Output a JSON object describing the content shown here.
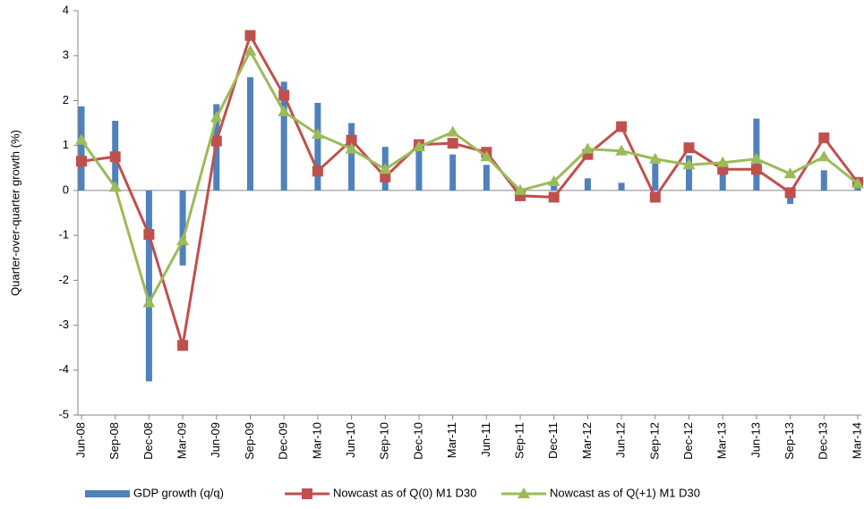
{
  "chart_data": {
    "type": "combo",
    "y_label": "Quarter-over-quarter growth (%)",
    "categories": [
      "Jun-08",
      "Sep-08",
      "Dec-08",
      "Mar-09",
      "Jun-09",
      "Sep-09",
      "Dec-09",
      "Mar-10",
      "Jun-10",
      "Sep-10",
      "Dec-10",
      "Mar-11",
      "Jun-11",
      "Sep-11",
      "Dec-11",
      "Mar-12",
      "Jun-12",
      "Sep-12",
      "Dec-12",
      "Mar-13",
      "Jun-13",
      "Sep-13",
      "Dec-13",
      "Mar-14"
    ],
    "series": [
      {
        "name": "GDP growth (q/q)",
        "type": "bar",
        "color": "#4f81bd",
        "values": [
          1.87,
          1.55,
          -4.25,
          -1.67,
          1.92,
          2.52,
          2.42,
          1.95,
          1.5,
          0.97,
          1.0,
          0.8,
          0.57,
          0.02,
          0.1,
          0.27,
          0.17,
          0.6,
          0.78,
          0.5,
          1.6,
          -0.3,
          0.45,
          0.2
        ]
      },
      {
        "name": "Nowcast as of Q(0) M1 D30",
        "type": "line",
        "marker": "square",
        "color": "#c0504d",
        "values": [
          0.65,
          0.75,
          -0.98,
          -3.45,
          1.1,
          3.45,
          2.12,
          0.43,
          1.12,
          0.3,
          1.02,
          1.05,
          0.85,
          -0.12,
          -0.15,
          0.8,
          1.42,
          -0.15,
          0.95,
          0.47,
          0.47,
          -0.05,
          1.17,
          0.18
        ]
      },
      {
        "name": "Nowcast as of Q(+1) M1 D30",
        "type": "line",
        "marker": "triangle",
        "color": "#9bbb59",
        "values": [
          1.12,
          0.07,
          -2.5,
          -1.12,
          1.62,
          3.1,
          1.75,
          1.25,
          0.92,
          0.47,
          0.97,
          1.3,
          0.75,
          0.0,
          0.2,
          0.92,
          0.88,
          0.7,
          0.57,
          0.62,
          0.7,
          0.37,
          0.75,
          0.15
        ]
      }
    ],
    "ylim": [
      -5,
      4
    ],
    "yticks": [
      -5,
      -4,
      -3,
      -2,
      -1,
      0,
      1,
      2,
      3,
      4
    ],
    "grid": false,
    "legend": "bottom"
  }
}
